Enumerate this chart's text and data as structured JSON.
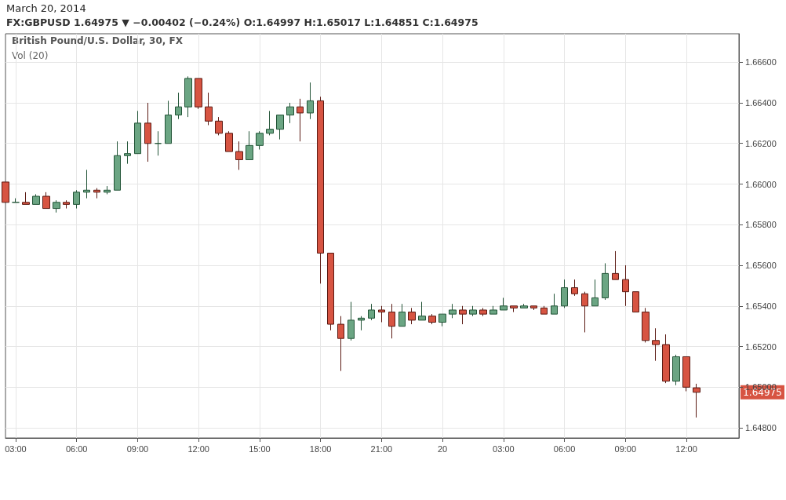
{
  "chart_data": {
    "type": "candlestick",
    "title": "March 20, 2014",
    "subtitle": "FX:GBPUSD 1.64975 ▼ −0.00402 (−0.24%) O:1.64997 H:1.65017 L:1.64851 C:1.64975",
    "annotations": [
      "British Pound/U.S. Dollar, 30, FX",
      "Vol (20)",
      "1.64975"
    ],
    "x": [
      "2014-03-19T02:30",
      "2014-03-19T03:00",
      "2014-03-19T03:30",
      "2014-03-19T04:00",
      "2014-03-19T04:30",
      "2014-03-19T05:00",
      "2014-03-19T05:30",
      "2014-03-19T06:00",
      "2014-03-19T06:30",
      "2014-03-19T07:00",
      "2014-03-19T07:30",
      "2014-03-19T08:00",
      "2014-03-19T08:30",
      "2014-03-19T09:00",
      "2014-03-19T09:30",
      "2014-03-19T10:00",
      "2014-03-19T10:30",
      "2014-03-19T11:00",
      "2014-03-19T11:30",
      "2014-03-19T12:00",
      "2014-03-19T12:30",
      "2014-03-19T13:00",
      "2014-03-19T13:30",
      "2014-03-19T14:00",
      "2014-03-19T14:30",
      "2014-03-19T15:00",
      "2014-03-19T15:30",
      "2014-03-19T16:00",
      "2014-03-19T16:30",
      "2014-03-19T17:00",
      "2014-03-19T17:30",
      "2014-03-19T18:00",
      "2014-03-19T18:30",
      "2014-03-19T19:00",
      "2014-03-19T19:30",
      "2014-03-19T20:00",
      "2014-03-19T20:30",
      "2014-03-19T21:00",
      "2014-03-19T21:30",
      "2014-03-19T22:00",
      "2014-03-19T22:30",
      "2014-03-19T23:00",
      "2014-03-19T23:30",
      "2014-03-20T00:00",
      "2014-03-20T00:30",
      "2014-03-20T01:00",
      "2014-03-20T01:30",
      "2014-03-20T02:00",
      "2014-03-20T02:30",
      "2014-03-20T03:00",
      "2014-03-20T03:30",
      "2014-03-20T04:00",
      "2014-03-20T04:30",
      "2014-03-20T05:00",
      "2014-03-20T05:30",
      "2014-03-20T06:00",
      "2014-03-20T06:30",
      "2014-03-20T07:00",
      "2014-03-20T07:30",
      "2014-03-20T08:00",
      "2014-03-20T08:30",
      "2014-03-20T09:00",
      "2014-03-20T09:30",
      "2014-03-20T10:00",
      "2014-03-20T10:30",
      "2014-03-20T11:00",
      "2014-03-20T11:30",
      "2014-03-20T12:00",
      "2014-03-20T12:30"
    ],
    "ohlc": [
      [
        1.6601,
        1.6601,
        1.6591,
        1.6591
      ],
      [
        1.6591,
        1.6593,
        1.6591,
        1.6591
      ],
      [
        1.6591,
        1.6596,
        1.659,
        1.659
      ],
      [
        1.659,
        1.6595,
        1.659,
        1.6594
      ],
      [
        1.6594,
        1.6596,
        1.6588,
        1.6588
      ],
      [
        1.6588,
        1.6592,
        1.6586,
        1.6591
      ],
      [
        1.6591,
        1.6592,
        1.6588,
        1.659
      ],
      [
        1.659,
        1.6597,
        1.6588,
        1.6596
      ],
      [
        1.6596,
        1.6607,
        1.6593,
        1.6597
      ],
      [
        1.6597,
        1.6598,
        1.6593,
        1.6596
      ],
      [
        1.6596,
        1.6599,
        1.6595,
        1.6597
      ],
      [
        1.6597,
        1.6621,
        1.6597,
        1.6614
      ],
      [
        1.6614,
        1.6621,
        1.661,
        1.6615
      ],
      [
        1.6615,
        1.6636,
        1.6615,
        1.663
      ],
      [
        1.663,
        1.664,
        1.6611,
        1.662
      ],
      [
        1.662,
        1.6626,
        1.6614,
        1.662
      ],
      [
        1.662,
        1.6641,
        1.662,
        1.6634
      ],
      [
        1.6634,
        1.6645,
        1.6632,
        1.6638
      ],
      [
        1.6638,
        1.6653,
        1.6633,
        1.6652
      ],
      [
        1.6652,
        1.6652,
        1.6637,
        1.6638
      ],
      [
        1.6638,
        1.6645,
        1.6629,
        1.6631
      ],
      [
        1.6631,
        1.6633,
        1.6624,
        1.6625
      ],
      [
        1.6625,
        1.6626,
        1.6616,
        1.6616
      ],
      [
        1.6616,
        1.6621,
        1.6607,
        1.6612
      ],
      [
        1.6612,
        1.6626,
        1.6612,
        1.6619
      ],
      [
        1.6619,
        1.6626,
        1.6617,
        1.6625
      ],
      [
        1.6625,
        1.6636,
        1.6624,
        1.6627
      ],
      [
        1.6627,
        1.6634,
        1.6622,
        1.6634
      ],
      [
        1.6634,
        1.664,
        1.663,
        1.6638
      ],
      [
        1.6638,
        1.6642,
        1.6621,
        1.6635
      ],
      [
        1.6635,
        1.665,
        1.6632,
        1.6641
      ],
      [
        1.6641,
        1.6643,
        1.6551,
        1.6566
      ],
      [
        1.6566,
        1.6566,
        1.6528,
        1.6531
      ],
      [
        1.6531,
        1.6535,
        1.6508,
        1.6524
      ],
      [
        1.6524,
        1.6542,
        1.6523,
        1.6533
      ],
      [
        1.6533,
        1.6535,
        1.6528,
        1.6534
      ],
      [
        1.6534,
        1.6541,
        1.6533,
        1.6538
      ],
      [
        1.6538,
        1.654,
        1.6532,
        1.6537
      ],
      [
        1.6537,
        1.6541,
        1.6524,
        1.653
      ],
      [
        1.653,
        1.6541,
        1.653,
        1.6537
      ],
      [
        1.6537,
        1.6539,
        1.6531,
        1.6533
      ],
      [
        1.6533,
        1.6542,
        1.6533,
        1.6535
      ],
      [
        1.6535,
        1.6536,
        1.6531,
        1.6532
      ],
      [
        1.6532,
        1.6536,
        1.653,
        1.6536
      ],
      [
        1.6536,
        1.6541,
        1.6534,
        1.6538
      ],
      [
        1.6538,
        1.654,
        1.6531,
        1.6536
      ],
      [
        1.6536,
        1.654,
        1.6535,
        1.6538
      ],
      [
        1.6538,
        1.6539,
        1.6535,
        1.6536
      ],
      [
        1.6536,
        1.654,
        1.6536,
        1.6538
      ],
      [
        1.6538,
        1.6544,
        1.6538,
        1.654
      ],
      [
        1.654,
        1.654,
        1.6537,
        1.6539
      ],
      [
        1.6539,
        1.6541,
        1.6539,
        1.654
      ],
      [
        1.654,
        1.654,
        1.6538,
        1.6539
      ],
      [
        1.6539,
        1.654,
        1.6536,
        1.6536
      ],
      [
        1.6536,
        1.6546,
        1.6536,
        1.654
      ],
      [
        1.654,
        1.6553,
        1.6539,
        1.6549
      ],
      [
        1.6549,
        1.6553,
        1.6545,
        1.6546
      ],
      [
        1.6546,
        1.6547,
        1.6527,
        1.654
      ],
      [
        1.654,
        1.6553,
        1.654,
        1.6544
      ],
      [
        1.6544,
        1.6561,
        1.6543,
        1.6556
      ],
      [
        1.6556,
        1.6567,
        1.6553,
        1.6553
      ],
      [
        1.6553,
        1.656,
        1.654,
        1.6547
      ],
      [
        1.6547,
        1.6547,
        1.6537,
        1.6537
      ],
      [
        1.6537,
        1.6539,
        1.6522,
        1.6523
      ],
      [
        1.6523,
        1.6529,
        1.6513,
        1.6521
      ],
      [
        1.6521,
        1.6526,
        1.6502,
        1.6503
      ],
      [
        1.6503,
        1.6516,
        1.6501,
        1.6515
      ],
      [
        1.6515,
        1.6515,
        1.6498,
        1.65
      ],
      [
        1.64997,
        1.65017,
        1.64851,
        1.64975
      ]
    ],
    "xlim": [
      "2014-03-19T02:30",
      "2014-03-20T14:35"
    ],
    "xticks": [
      {
        "value": "2014-03-19T03:00",
        "label": "03:00"
      },
      {
        "value": "2014-03-19T06:00",
        "label": "06:00"
      },
      {
        "value": "2014-03-19T09:00",
        "label": "09:00"
      },
      {
        "value": "2014-03-19T12:00",
        "label": "12:00"
      },
      {
        "value": "2014-03-19T15:00",
        "label": "15:00"
      },
      {
        "value": "2014-03-19T18:00",
        "label": "18:00"
      },
      {
        "value": "2014-03-19T21:00",
        "label": "21:00"
      },
      {
        "value": "2014-03-20T00:00",
        "label": "20"
      },
      {
        "value": "2014-03-20T03:00",
        "label": "03:00"
      },
      {
        "value": "2014-03-20T06:00",
        "label": "06:00"
      },
      {
        "value": "2014-03-20T09:00",
        "label": "09:00"
      },
      {
        "value": "2014-03-20T12:00",
        "label": "12:00"
      }
    ],
    "ylim": [
      1.6475,
      1.6674
    ],
    "yticks": [
      {
        "value": 1.648,
        "label": "1.64800"
      },
      {
        "value": 1.65,
        "label": "1.65000"
      },
      {
        "value": 1.652,
        "label": "1.65200"
      },
      {
        "value": 1.654,
        "label": "1.65400"
      },
      {
        "value": 1.656,
        "label": "1.65600"
      },
      {
        "value": 1.658,
        "label": "1.65800"
      },
      {
        "value": 1.66,
        "label": "1.66000"
      },
      {
        "value": 1.662,
        "label": "1.66200"
      },
      {
        "value": 1.664,
        "label": "1.66400"
      },
      {
        "value": 1.666,
        "label": "1.66600"
      }
    ],
    "grid": true
  }
}
